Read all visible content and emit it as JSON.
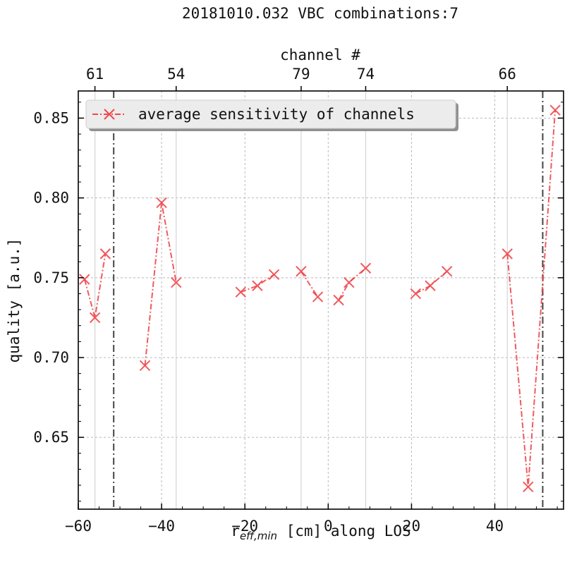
{
  "chart_data": {
    "type": "line",
    "title": "20181010.032 VBC combinations:7",
    "xlabel_main": "r",
    "xlabel_sub": "eff,min",
    "xlabel_rest": " [cm] along LOS",
    "ylabel": "quality [a.u.]",
    "top_axis_label": "channel #",
    "xlim": [
      -60,
      56.5
    ],
    "ylim": [
      0.605,
      0.867
    ],
    "x_ticks": [
      -60,
      -40,
      -20,
      0,
      20,
      40
    ],
    "x_tick_labels": [
      "−60",
      "−40",
      "−20",
      "0",
      "20",
      "40"
    ],
    "y_ticks": [
      0.65,
      0.7,
      0.75,
      0.8,
      0.85
    ],
    "y_tick_labels": [
      "0.65",
      "0.70",
      "0.75",
      "0.80",
      "0.85"
    ],
    "top_ticks": [
      {
        "x": -56,
        "label": "61"
      },
      {
        "x": -36.5,
        "label": "54"
      },
      {
        "x": -6.5,
        "label": "79"
      },
      {
        "x": 9,
        "label": "74"
      },
      {
        "x": 43,
        "label": "66"
      }
    ],
    "channel_lines_x": [
      -56,
      -36.5,
      -6.5,
      9,
      43
    ],
    "separator_lines_x": [
      -51.5,
      51.5
    ],
    "grid": true,
    "legend_position": "top-left",
    "series": [
      {
        "name": "average sensitivity of channels",
        "color": "#f0484c",
        "marker": "x",
        "line_style": "dash-dot",
        "segments": [
          [
            [
              -58.5,
              0.749
            ],
            [
              -56,
              0.725
            ],
            [
              -53.5,
              0.765
            ]
          ],
          [
            [
              -44,
              0.695
            ],
            [
              -40,
              0.797
            ],
            [
              -36.5,
              0.747
            ]
          ],
          [
            [
              -21,
              0.741
            ],
            [
              -17,
              0.745
            ],
            [
              -13,
              0.752
            ]
          ],
          [
            [
              -6.5,
              0.754
            ],
            [
              -2.5,
              0.738
            ]
          ],
          [
            [
              2.5,
              0.736
            ],
            [
              5,
              0.747
            ],
            [
              9,
              0.756
            ]
          ],
          [
            [
              21,
              0.74
            ],
            [
              24.5,
              0.745
            ],
            [
              28.5,
              0.754
            ]
          ],
          [
            [
              43,
              0.765
            ],
            [
              48,
              0.619
            ],
            [
              54.5,
              0.855
            ]
          ]
        ]
      }
    ]
  }
}
